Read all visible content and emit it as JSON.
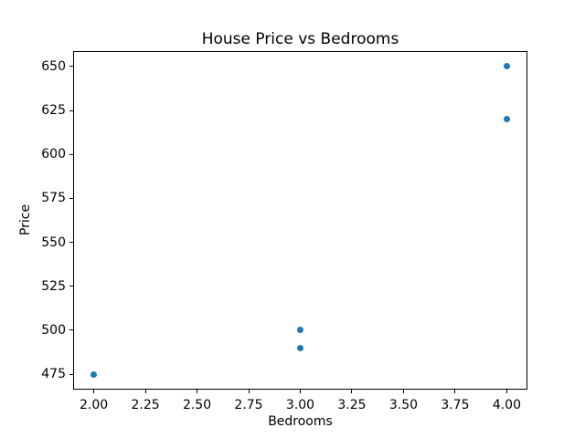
{
  "chart_data": {
    "type": "scatter",
    "title": "House Price vs Bedrooms",
    "xlabel": "Bedrooms",
    "ylabel": "Price",
    "x": [
      2,
      3,
      3,
      4,
      4
    ],
    "y": [
      475,
      500,
      490,
      650,
      620
    ],
    "xlim": [
      1.9,
      4.1
    ],
    "ylim": [
      466.25,
      658.75
    ],
    "xticks": [
      2.0,
      2.25,
      2.5,
      2.75,
      3.0,
      3.25,
      3.5,
      3.75,
      4.0
    ],
    "xtick_labels": [
      "2.00",
      "2.25",
      "2.50",
      "2.75",
      "3.00",
      "3.25",
      "3.50",
      "3.75",
      "4.00"
    ],
    "yticks": [
      475,
      500,
      525,
      550,
      575,
      600,
      625,
      650
    ],
    "ytick_labels": [
      "475",
      "500",
      "525",
      "550",
      "575",
      "600",
      "625",
      "650"
    ],
    "marker_color": "#1f77b4",
    "axis_color": "#000000",
    "background_color": "#ffffff",
    "grid": false,
    "legend": null
  }
}
